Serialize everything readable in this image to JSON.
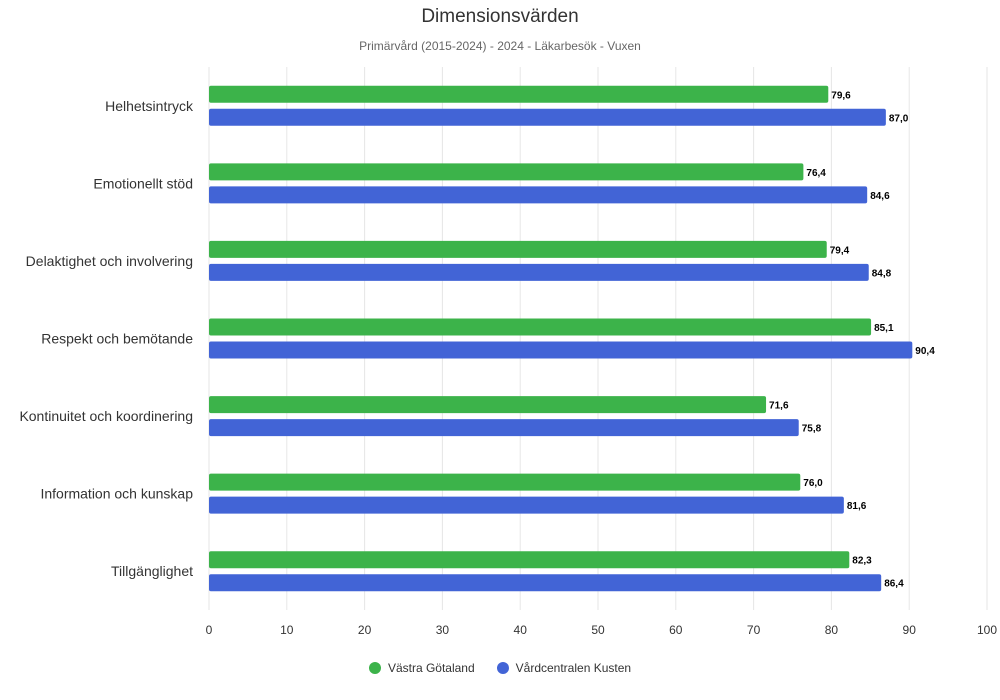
{
  "chart_data": {
    "type": "bar",
    "orientation": "horizontal",
    "title": "Dimensionsvärden",
    "subtitle": "Primärvård (2015-2024) - 2024 - Läkarbesök - Vuxen",
    "categories": [
      "Helhetsintryck",
      "Emotionellt stöd",
      "Delaktighet och involvering",
      "Respekt och bemötande",
      "Kontinuitet och koordinering",
      "Information och kunskap",
      "Tillgänglighet"
    ],
    "series": [
      {
        "name": "Västra Götaland",
        "color": "#3cb34a",
        "values": [
          79.6,
          76.4,
          79.4,
          85.1,
          71.6,
          76.0,
          82.3
        ],
        "labels": [
          "79,6",
          "76,4",
          "79,4",
          "85,1",
          "71,6",
          "76,0",
          "82,3"
        ]
      },
      {
        "name": "Vårdcentralen Kusten",
        "color": "#4264d6",
        "values": [
          87.0,
          84.6,
          84.8,
          90.4,
          75.8,
          81.6,
          86.4
        ],
        "labels": [
          "87,0",
          "84,6",
          "84,8",
          "90,4",
          "75,8",
          "81,6",
          "86,4"
        ]
      }
    ],
    "xlim": [
      0,
      100
    ],
    "xticks": [
      "0",
      "10",
      "20",
      "30",
      "40",
      "50",
      "60",
      "70",
      "80",
      "90",
      "100"
    ],
    "grid": true,
    "legend_position": "bottom"
  }
}
